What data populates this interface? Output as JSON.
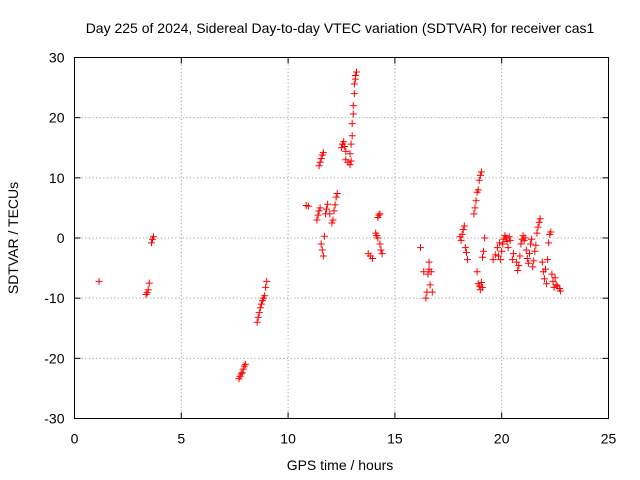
{
  "chart_data": {
    "type": "scatter",
    "title": "Day 225 of 2024, Sidereal Day-to-day VTEC variation (SDTVAR) for receiver cas1",
    "xlabel": "GPS time / hours",
    "ylabel": "SDTVAR / TECUs",
    "xlim": [
      0,
      25
    ],
    "ylim": [
      -30,
      30
    ],
    "x_ticks": [
      0,
      5,
      10,
      15,
      20,
      25
    ],
    "x_tick_labels": [
      "0",
      "5",
      "10",
      "15",
      "20",
      "25"
    ],
    "y_ticks": [
      -30,
      -20,
      -10,
      0,
      10,
      20,
      30
    ],
    "y_tick_labels": [
      "-30",
      "-20",
      "-10",
      "0",
      "10",
      "20",
      "30"
    ],
    "grid": true,
    "marker": "+",
    "color": "#ff0000",
    "series": [
      {
        "name": "SDTVAR",
        "points": [
          [
            1.15,
            -7.2
          ],
          [
            3.35,
            -9.4
          ],
          [
            3.4,
            -9.1
          ],
          [
            3.45,
            -8.6
          ],
          [
            3.5,
            -7.5
          ],
          [
            3.6,
            -0.8
          ],
          [
            3.65,
            -0.2
          ],
          [
            3.7,
            0.2
          ],
          [
            7.7,
            -23.4
          ],
          [
            7.75,
            -23.0
          ],
          [
            7.8,
            -22.6
          ],
          [
            7.85,
            -22.4
          ],
          [
            7.9,
            -21.8
          ],
          [
            7.95,
            -21.3
          ],
          [
            8.0,
            -21.0
          ],
          [
            8.55,
            -14.0
          ],
          [
            8.6,
            -13.2
          ],
          [
            8.65,
            -12.4
          ],
          [
            8.7,
            -11.6
          ],
          [
            8.75,
            -11.0
          ],
          [
            8.8,
            -10.4
          ],
          [
            8.85,
            -10.0
          ],
          [
            8.9,
            -9.6
          ],
          [
            8.95,
            -8.2
          ],
          [
            9.0,
            -7.2
          ],
          [
            10.85,
            5.4
          ],
          [
            10.95,
            5.3
          ],
          [
            11.35,
            3.0
          ],
          [
            11.4,
            3.8
          ],
          [
            11.45,
            4.5
          ],
          [
            11.5,
            5.0
          ],
          [
            11.55,
            -1.0
          ],
          [
            11.6,
            -2.0
          ],
          [
            11.65,
            -3.0
          ],
          [
            11.7,
            0.3
          ],
          [
            11.75,
            4.0
          ],
          [
            11.8,
            4.8
          ],
          [
            11.85,
            5.6
          ],
          [
            11.45,
            12.0
          ],
          [
            11.5,
            12.6
          ],
          [
            11.55,
            13.2
          ],
          [
            11.6,
            13.8
          ],
          [
            11.65,
            14.2
          ],
          [
            11.95,
            4.0
          ],
          [
            12.05,
            2.5
          ],
          [
            12.1,
            3.0
          ],
          [
            12.15,
            4.5
          ],
          [
            12.2,
            5.5
          ],
          [
            12.25,
            6.8
          ],
          [
            12.3,
            7.4
          ],
          [
            12.5,
            15.0
          ],
          [
            12.55,
            15.6
          ],
          [
            12.6,
            16.0
          ],
          [
            12.65,
            15.2
          ],
          [
            12.7,
            14.4
          ],
          [
            12.7,
            13.0
          ],
          [
            12.8,
            12.6
          ],
          [
            12.9,
            12.2
          ],
          [
            12.95,
            12.8
          ],
          [
            12.9,
            14.0
          ],
          [
            12.95,
            15.6
          ],
          [
            13.0,
            17.0
          ],
          [
            13.0,
            19.0
          ],
          [
            13.05,
            20.6
          ],
          [
            13.05,
            22.0
          ],
          [
            13.1,
            24.0
          ],
          [
            13.1,
            25.6
          ],
          [
            13.15,
            26.4
          ],
          [
            13.15,
            27.0
          ],
          [
            13.2,
            27.6
          ],
          [
            13.75,
            -2.6
          ],
          [
            13.85,
            -3.0
          ],
          [
            13.95,
            -3.4
          ],
          [
            14.1,
            0.8
          ],
          [
            14.15,
            0.4
          ],
          [
            14.2,
            0.0
          ],
          [
            14.2,
            3.4
          ],
          [
            14.25,
            3.8
          ],
          [
            14.3,
            4.0
          ],
          [
            14.3,
            -1.0
          ],
          [
            14.35,
            -2.0
          ],
          [
            14.4,
            -2.6
          ],
          [
            16.2,
            -1.6
          ],
          [
            16.35,
            -5.6
          ],
          [
            16.45,
            -10.0
          ],
          [
            16.5,
            -9.0
          ],
          [
            16.55,
            -6.0
          ],
          [
            16.6,
            -5.2
          ],
          [
            16.6,
            -4.0
          ],
          [
            16.65,
            -7.8
          ],
          [
            16.7,
            -5.6
          ],
          [
            16.75,
            -9.0
          ],
          [
            18.05,
            0.2
          ],
          [
            18.1,
            -0.4
          ],
          [
            18.15,
            0.6
          ],
          [
            18.2,
            1.4
          ],
          [
            18.25,
            2.0
          ],
          [
            18.3,
            -1.6
          ],
          [
            18.35,
            -2.4
          ],
          [
            18.4,
            -3.6
          ],
          [
            18.7,
            4.0
          ],
          [
            18.75,
            5.0
          ],
          [
            18.8,
            6.2
          ],
          [
            18.85,
            7.6
          ],
          [
            18.9,
            8.0
          ],
          [
            18.95,
            9.6
          ],
          [
            19.0,
            10.4
          ],
          [
            19.05,
            11.0
          ],
          [
            18.85,
            -5.6
          ],
          [
            18.9,
            -7.6
          ],
          [
            18.95,
            -8.0
          ],
          [
            19.0,
            -8.6
          ],
          [
            19.05,
            -7.4
          ],
          [
            19.1,
            -8.2
          ],
          [
            19.1,
            -3.2
          ],
          [
            19.15,
            -2.2
          ],
          [
            19.2,
            0.0
          ],
          [
            19.6,
            -3.6
          ],
          [
            19.7,
            -2.8
          ],
          [
            19.8,
            -1.6
          ],
          [
            19.85,
            -3.0
          ],
          [
            19.9,
            -0.8
          ],
          [
            19.95,
            -3.6
          ],
          [
            20.0,
            -2.2
          ],
          [
            20.05,
            -1.0
          ],
          [
            20.1,
            -0.2
          ],
          [
            20.15,
            0.4
          ],
          [
            20.2,
            0.0
          ],
          [
            20.25,
            -0.6
          ],
          [
            20.3,
            -1.6
          ],
          [
            20.35,
            0.2
          ],
          [
            20.4,
            -0.4
          ],
          [
            20.5,
            -3.6
          ],
          [
            20.55,
            -2.6
          ],
          [
            20.7,
            -4.0
          ],
          [
            20.75,
            -5.4
          ],
          [
            20.8,
            -4.6
          ],
          [
            20.85,
            -3.0
          ],
          [
            20.9,
            -1.0
          ],
          [
            20.95,
            -0.2
          ],
          [
            21.0,
            0.4
          ],
          [
            21.05,
            -0.4
          ],
          [
            21.1,
            0.0
          ],
          [
            21.15,
            -2.0
          ],
          [
            21.2,
            -3.4
          ],
          [
            21.25,
            -4.2
          ],
          [
            21.3,
            -2.6
          ],
          [
            21.35,
            -1.0
          ],
          [
            21.4,
            -0.2
          ],
          [
            21.45,
            -4.8
          ],
          [
            21.5,
            -3.8
          ],
          [
            21.55,
            -2.2
          ],
          [
            21.6,
            -1.2
          ],
          [
            21.65,
            0.8
          ],
          [
            21.7,
            1.8
          ],
          [
            21.75,
            2.6
          ],
          [
            21.8,
            3.2
          ],
          [
            21.9,
            -4.0
          ],
          [
            21.95,
            -5.6
          ],
          [
            22.0,
            -6.8
          ],
          [
            22.05,
            -5.2
          ],
          [
            22.1,
            -7.6
          ],
          [
            22.15,
            -3.6
          ],
          [
            22.2,
            -0.8
          ],
          [
            22.25,
            0.6
          ],
          [
            22.3,
            1.0
          ],
          [
            22.35,
            -6.0
          ],
          [
            22.4,
            -7.2
          ],
          [
            22.45,
            -8.2
          ],
          [
            22.5,
            -6.6
          ],
          [
            22.55,
            -7.8
          ],
          [
            22.6,
            -8.0
          ],
          [
            22.7,
            -8.4
          ],
          [
            22.75,
            -8.8
          ]
        ]
      }
    ]
  }
}
